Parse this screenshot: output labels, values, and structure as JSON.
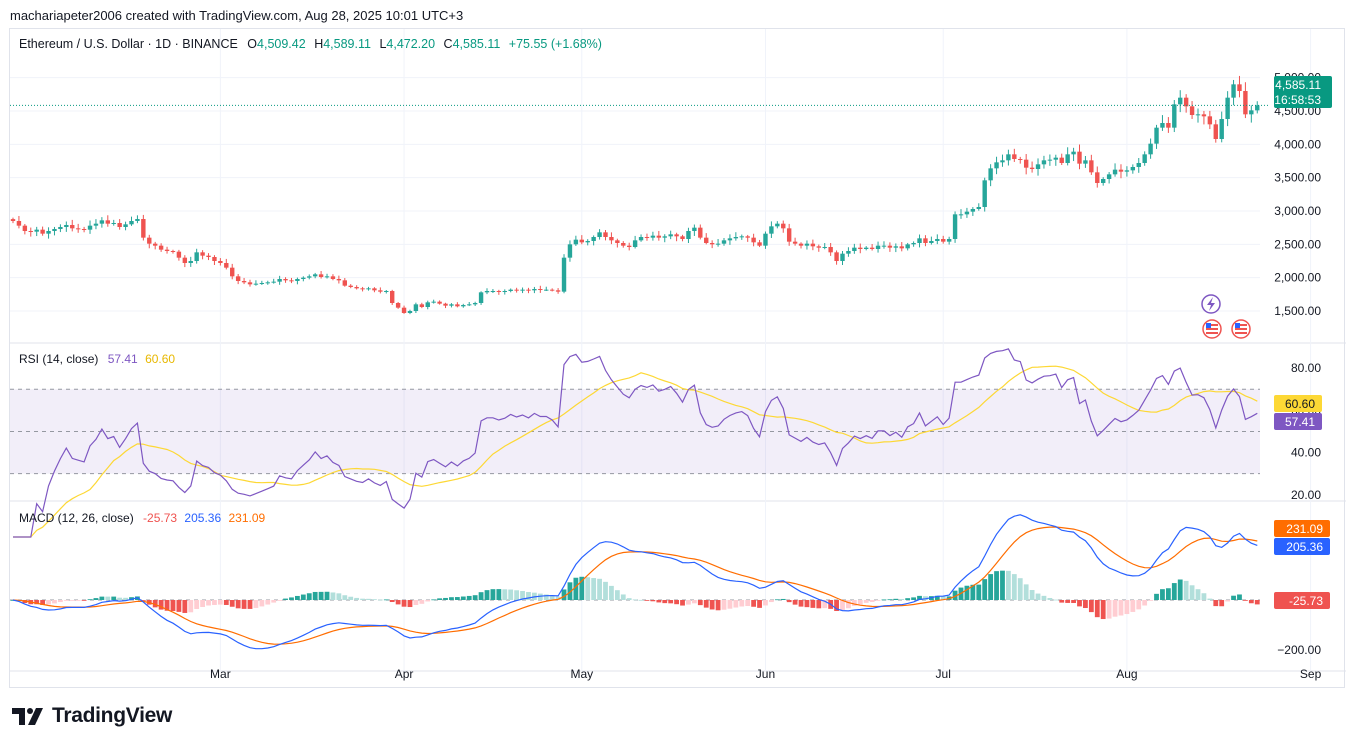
{
  "header": {
    "credit": "macharia​peter2006 created with TradingView.com, Aug 28, 2025 10:01 UTC+3"
  },
  "footer": {
    "brand": "TradingView"
  },
  "colors": {
    "up": "#26a69a",
    "down": "#ef5350",
    "rsi": "#7e57c2",
    "rsi_ma": "#fdd835",
    "macd": "#2962ff",
    "signal": "#ff6d00"
  },
  "chart_data": [
    {
      "type": "candlestick",
      "legend": {
        "symbol": "Ethereum / U.S. Dollar · 1D · BINANCE",
        "o_label": "O",
        "o": "4,509.42",
        "h_label": "H",
        "h": "4,589.11",
        "l_label": "L",
        "l": "4,472.20",
        "c_label": "C",
        "c": "4,585.11",
        "change": "+75.55 (+1.68%)"
      },
      "last_price": "4,585.11",
      "countdown": "16:58:53",
      "y_ticks": [
        "5,000.00",
        "4,500.00",
        "4,000.00",
        "3,500.00",
        "3,000.00",
        "2,500.00",
        "2,000.00",
        "1,500.00"
      ],
      "y_tick_values": [
        5000,
        4500,
        4000,
        3500,
        3000,
        2500,
        2000,
        1500
      ],
      "ylim": [
        1050,
        5400
      ],
      "x_ticks": [
        "Mar",
        "Apr",
        "May",
        "Jun",
        "Jul",
        "Aug",
        "Sep"
      ],
      "x_tick_dates": [
        "2025-03-01",
        "2025-04-01",
        "2025-05-01",
        "2025-06-01",
        "2025-07-01",
        "2025-08-01",
        "2025-09-01"
      ],
      "start_date": "2025-01-25",
      "close": [
        2850,
        2780,
        2700,
        2690,
        2720,
        2660,
        2700,
        2730,
        2760,
        2790,
        2740,
        2730,
        2720,
        2780,
        2810,
        2860,
        2810,
        2820,
        2760,
        2800,
        2850,
        2880,
        2600,
        2510,
        2480,
        2420,
        2400,
        2390,
        2300,
        2220,
        2250,
        2380,
        2330,
        2310,
        2250,
        2220,
        2150,
        2020,
        1950,
        1930,
        1900,
        1910,
        1920,
        1930,
        1940,
        1980,
        1960,
        1950,
        1980,
        2000,
        2020,
        2050,
        2010,
        2020,
        1980,
        1960,
        1880,
        1860,
        1840,
        1830,
        1840,
        1810,
        1790,
        1800,
        1620,
        1550,
        1470,
        1500,
        1600,
        1560,
        1630,
        1640,
        1610,
        1580,
        1600,
        1570,
        1590,
        1600,
        1620,
        1780,
        1800,
        1800,
        1790,
        1800,
        1820,
        1810,
        1820,
        1810,
        1830,
        1820,
        1820,
        1810,
        1790,
        2300,
        2500,
        2570,
        2530,
        2550,
        2610,
        2680,
        2610,
        2560,
        2520,
        2480,
        2460,
        2560,
        2610,
        2600,
        2630,
        2600,
        2620,
        2650,
        2620,
        2580,
        2700,
        2750,
        2600,
        2520,
        2500,
        2510,
        2560,
        2590,
        2610,
        2620,
        2600,
        2530,
        2480,
        2660,
        2770,
        2810,
        2740,
        2540,
        2510,
        2480,
        2510,
        2470,
        2450,
        2460,
        2380,
        2250,
        2360,
        2400,
        2450,
        2430,
        2450,
        2430,
        2480,
        2480,
        2450,
        2470,
        2440,
        2500,
        2520,
        2590,
        2520,
        2550,
        2580,
        2540,
        2580,
        2950,
        2950,
        2990,
        3030,
        3060,
        3460,
        3640,
        3730,
        3760,
        3850,
        3780,
        3770,
        3650,
        3630,
        3700,
        3760,
        3770,
        3800,
        3720,
        3850,
        3890,
        3710,
        3760,
        3580,
        3420,
        3480,
        3550,
        3620,
        3590,
        3610,
        3660,
        3720,
        3850,
        4010,
        4250,
        4320,
        4250,
        4600,
        4700,
        4570,
        4440,
        4450,
        4420,
        4300,
        4080,
        4380,
        4700,
        4900,
        4800,
        4450,
        4510,
        4585
      ],
      "volume_note": ""
    },
    {
      "type": "line",
      "name_label": "RSI (14, close)",
      "rsi_value": "57.41",
      "ma_value": "60.60",
      "y_ticks": [
        "80.00",
        "60.00",
        "40.00",
        "20.00"
      ],
      "y_tick_values": [
        80,
        60,
        40,
        20
      ],
      "ylim": [
        18,
        90
      ],
      "bands": [
        70,
        50,
        30
      ]
    },
    {
      "type": "bar+line",
      "name_label": "MACD (12, 26, close)",
      "hist_value": "-25.73",
      "macd_value": "205.36",
      "signal_value": "231.09",
      "y_ticks": [
        "0.00",
        "−200.00"
      ],
      "y_tick_values": [
        0,
        -200
      ],
      "ylim": [
        -260,
        380
      ]
    }
  ]
}
